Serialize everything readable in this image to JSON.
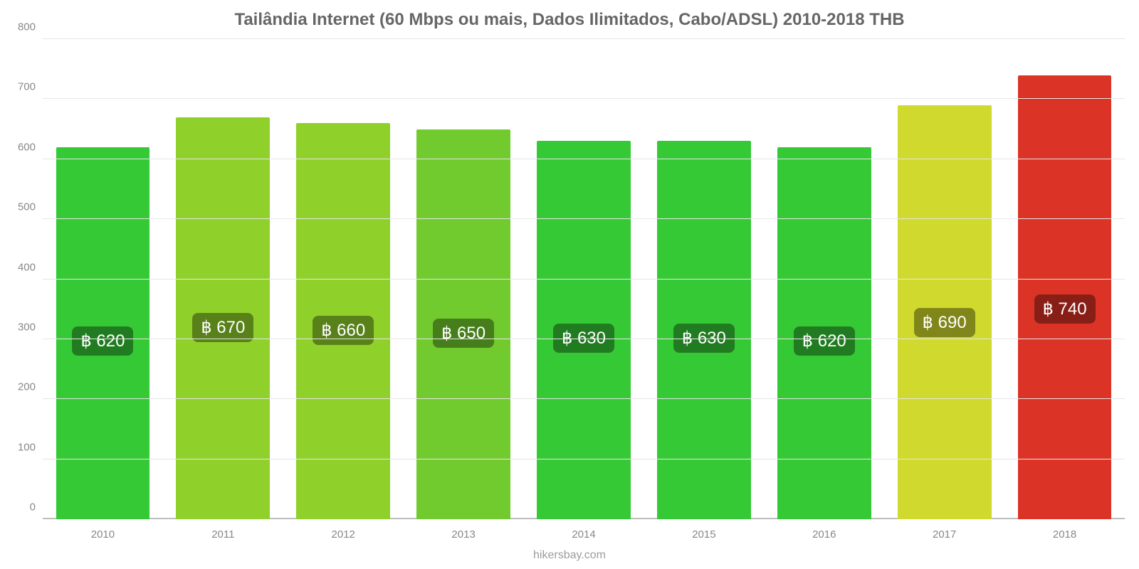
{
  "chart": {
    "type": "bar",
    "title": "Tailândia Internet (60 Mbps ou mais, Dados Ilimitados, Cabo/ADSL) 2010-2018 THB",
    "title_fontsize": 24,
    "title_color": "#666666",
    "background_color": "#ffffff",
    "grid_color": "#e6e6e6",
    "axis_label_color": "#888888",
    "axis_label_fontsize": 15,
    "ylim": [
      0,
      800
    ],
    "ytick_step": 100,
    "yticks": [
      0,
      100,
      200,
      300,
      400,
      500,
      600,
      700,
      800
    ],
    "categories": [
      "2010",
      "2011",
      "2012",
      "2013",
      "2014",
      "2015",
      "2016",
      "2017",
      "2018"
    ],
    "values": [
      620,
      670,
      660,
      650,
      630,
      630,
      620,
      690,
      740
    ],
    "value_labels": [
      "฿ 620",
      "฿ 670",
      "฿ 660",
      "฿ 650",
      "฿ 630",
      "฿ 630",
      "฿ 620",
      "฿ 690",
      "฿ 740"
    ],
    "bar_colors": [
      "#36c936",
      "#8fd12a",
      "#8fd12a",
      "#71cb2e",
      "#36c936",
      "#36c936",
      "#36c936",
      "#d0d92d",
      "#db3325"
    ],
    "value_label_fontsize": 24,
    "value_label_color": "#ffffff",
    "value_badge_bg": "rgba(0,0,0,0.38)",
    "value_badge_radius": 8,
    "value_badge_bottom_pct": 44,
    "bar_width_pct": 78,
    "source": "hikersbay.com",
    "source_color": "#9c9c9c",
    "source_fontsize": 16
  }
}
